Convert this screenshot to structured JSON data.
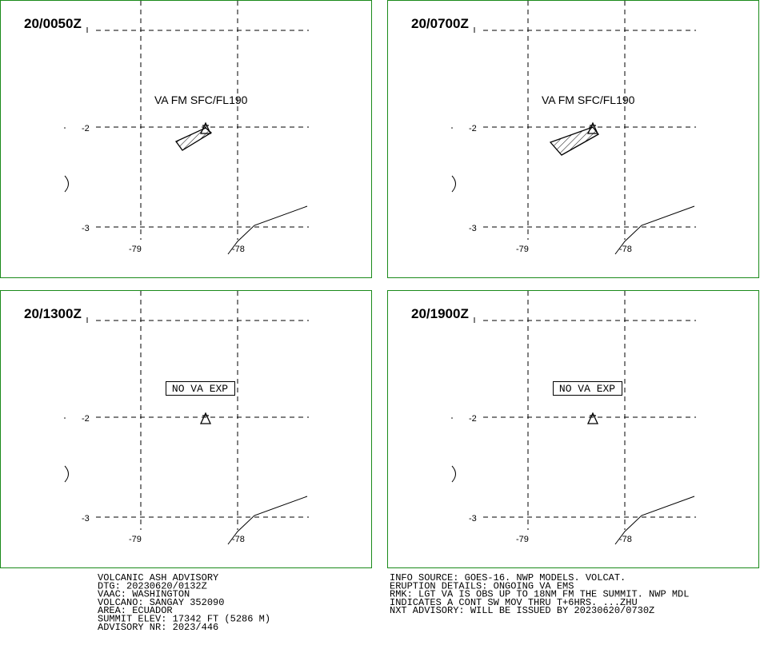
{
  "panels": [
    {
      "time": "20/0050Z",
      "label": "VA FM SFC/FL190",
      "lat_labels": [
        "-2",
        "-3"
      ],
      "lon_labels": [
        "-79",
        "-78"
      ]
    },
    {
      "time": "20/0700Z",
      "label": "VA FM SFC/FL190",
      "lat_labels": [
        "-2",
        "-3"
      ],
      "lon_labels": [
        "-79",
        "-78"
      ]
    },
    {
      "time": "20/1300Z",
      "label": "NO VA EXP",
      "lat_labels": [
        "-2",
        "-3"
      ],
      "lon_labels": [
        "-79",
        "-78"
      ]
    },
    {
      "time": "20/1900Z",
      "label": "NO VA EXP",
      "lat_labels": [
        "-2",
        "-3"
      ],
      "lon_labels": [
        "-79",
        "-78"
      ]
    }
  ],
  "info_left": [
    "VOLCANIC ASH ADVISORY",
    "DTG: 20230620/0132Z",
    "VAAC: WASHINGTON",
    "VOLCANO: SANGAY 352090",
    "AREA: ECUADOR",
    "SUMMIT ELEV: 17342 FT (5286 M)",
    "ADVISORY NR: 2023/446"
  ],
  "info_right": [
    "INFO SOURCE: GOES-16. NWP MODELS. VOLCAT.",
    "ERUPTION DETAILS: ONGOING VA EMS",
    "RMK: LGT VA IS OBS UP TO 18NM FM THE SUMMIT. NWP MDL",
    "INDICATES A CONT SW MOV THRU T+6HRS. ...ZHU",
    "NXT ADVISORY: WILL BE ISSUED BY 20230620/0730Z"
  ]
}
